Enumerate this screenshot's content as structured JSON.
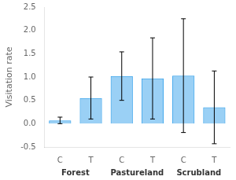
{
  "chart_data": {
    "type": "bar",
    "ylabel": "Visitation rate",
    "categories": [
      "C",
      "T",
      "C",
      "T",
      "C",
      "T"
    ],
    "groups": [
      "Forest",
      "Pastureland",
      "Scrubland"
    ],
    "values": [
      0.07,
      0.55,
      1.02,
      0.97,
      1.03,
      0.35
    ],
    "errors": [
      0.07,
      0.45,
      0.52,
      0.87,
      1.22,
      0.78
    ],
    "ylim": [
      -0.5,
      2.5
    ],
    "yticks": [
      -0.5,
      {
        "value": 0,
        "label": "0.0"
      },
      0.5,
      {
        "value": 1,
        "label": "1.0"
      },
      1.5,
      {
        "value": 2,
        "label": "2.0"
      },
      2.5
    ],
    "grid": false
  }
}
